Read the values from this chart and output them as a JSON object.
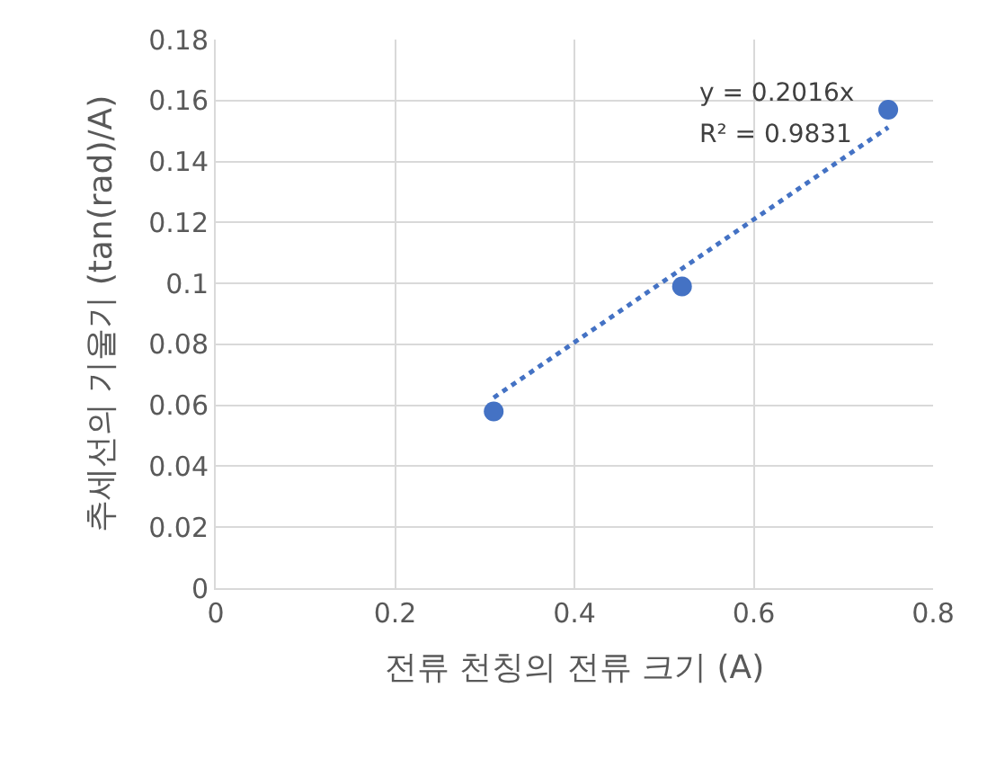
{
  "chart_data": {
    "type": "scatter",
    "xlabel": "전류 천칭의 전류 크기 (A)",
    "ylabel": "추세선의 기울기 (tan(rad)/A)",
    "x": [
      0.31,
      0.52,
      0.75
    ],
    "series": [
      {
        "color": "#4472c4",
        "values": [
          0.058,
          0.099,
          0.157
        ],
        "marker": "circle"
      },
      {
        "type": "line",
        "color": "#4472c4",
        "x": [
          0.31,
          0.75
        ],
        "values": [
          0.0625,
          0.1512
        ],
        "marker": "none",
        "line_style": "dotted"
      }
    ],
    "annotations": [
      "y = 0.2016x",
      "R² = 0.9831"
    ],
    "xlim": [
      0,
      0.8
    ],
    "xticks": [
      0,
      0.2,
      0.4,
      0.6,
      0.8
    ],
    "ylim": [
      0,
      0.18
    ],
    "yticks": [
      0,
      0.02,
      0.04,
      0.06,
      0.08,
      0.1,
      0.12,
      0.14,
      0.16,
      0.18
    ],
    "grid": true
  }
}
